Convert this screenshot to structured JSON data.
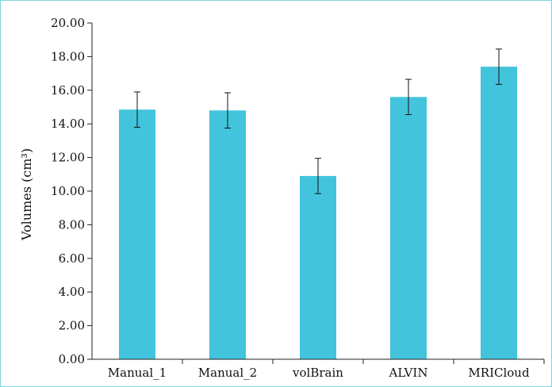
{
  "chart_data": {
    "type": "bar",
    "categories": [
      "Manual_1",
      "Manual_2",
      "volBrain",
      "ALVIN",
      "MRICloud"
    ],
    "values": [
      14.85,
      14.8,
      10.9,
      15.6,
      17.4
    ],
    "error": [
      1.05,
      1.05,
      1.05,
      1.05,
      1.05
    ],
    "ylabel": "Volumes (cm³)",
    "xlabel": "",
    "ylim": [
      0,
      20
    ],
    "yticks": [
      "0.00",
      "2.00",
      "4.00",
      "6.00",
      "8.00",
      "10.00",
      "12.00",
      "14.00",
      "16.00",
      "18.00",
      "20.00"
    ],
    "grid": false,
    "colors": {
      "bar": "#42c4dc",
      "axis": "#222222",
      "frame": "#7fd3df"
    }
  }
}
